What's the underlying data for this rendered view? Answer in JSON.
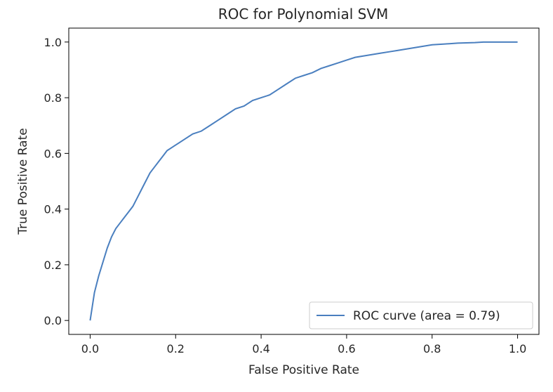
{
  "chart_data": {
    "type": "line",
    "title": "ROC for Polynomial SVM",
    "xlabel": "False Positive Rate",
    "ylabel": "True Positive Rate",
    "xlim": [
      -0.05,
      1.05
    ],
    "ylim": [
      -0.05,
      1.05
    ],
    "xticks": [
      "0.0",
      "0.2",
      "0.4",
      "0.6",
      "0.8",
      "1.0"
    ],
    "yticks": [
      "0.0",
      "0.2",
      "0.4",
      "0.6",
      "0.8",
      "1.0"
    ],
    "grid": false,
    "legend_position": "lower right",
    "line_color": "#4a7fbf",
    "series": [
      {
        "name": "ROC curve (area = 0.79)",
        "x": [
          0.0,
          0.005,
          0.01,
          0.015,
          0.02,
          0.03,
          0.04,
          0.05,
          0.06,
          0.07,
          0.08,
          0.09,
          0.1,
          0.11,
          0.12,
          0.13,
          0.14,
          0.15,
          0.16,
          0.17,
          0.18,
          0.19,
          0.2,
          0.22,
          0.24,
          0.26,
          0.28,
          0.3,
          0.32,
          0.34,
          0.36,
          0.38,
          0.4,
          0.42,
          0.44,
          0.46,
          0.48,
          0.5,
          0.52,
          0.54,
          0.56,
          0.58,
          0.6,
          0.62,
          0.64,
          0.66,
          0.68,
          0.7,
          0.72,
          0.74,
          0.76,
          0.78,
          0.8,
          0.82,
          0.84,
          0.86,
          0.88,
          0.9,
          0.92,
          0.94,
          0.96,
          0.98,
          1.0
        ],
        "y": [
          0.0,
          0.05,
          0.1,
          0.13,
          0.16,
          0.21,
          0.26,
          0.3,
          0.33,
          0.35,
          0.37,
          0.39,
          0.41,
          0.44,
          0.47,
          0.5,
          0.53,
          0.55,
          0.57,
          0.59,
          0.61,
          0.62,
          0.63,
          0.65,
          0.67,
          0.68,
          0.7,
          0.72,
          0.74,
          0.76,
          0.77,
          0.79,
          0.8,
          0.81,
          0.83,
          0.85,
          0.87,
          0.88,
          0.89,
          0.905,
          0.915,
          0.925,
          0.935,
          0.945,
          0.95,
          0.955,
          0.96,
          0.965,
          0.97,
          0.975,
          0.98,
          0.985,
          0.99,
          0.992,
          0.994,
          0.996,
          0.997,
          0.998,
          1.0,
          1.0,
          1.0,
          1.0,
          1.0
        ]
      }
    ]
  }
}
